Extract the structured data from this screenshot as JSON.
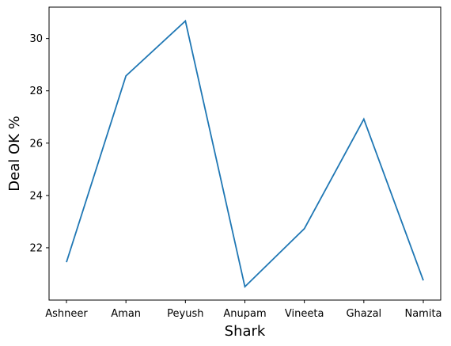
{
  "chart_data": {
    "type": "line",
    "title": "",
    "xlabel": "Shark",
    "ylabel": "Deal OK %",
    "categories": [
      "Ashneer",
      "Aman",
      "Peyush",
      "Anupam",
      "Vineeta",
      "Ghazal",
      "Namita"
    ],
    "series": [
      {
        "values": [
          21.45,
          28.57,
          30.67,
          20.51,
          22.73,
          26.92,
          20.75
        ],
        "color": "#1f77b4"
      }
    ],
    "ylim": [
      20.0,
      31.2
    ],
    "yticks": [
      "22",
      "24",
      "26",
      "28",
      "30"
    ],
    "grid": false,
    "legend": "none"
  }
}
